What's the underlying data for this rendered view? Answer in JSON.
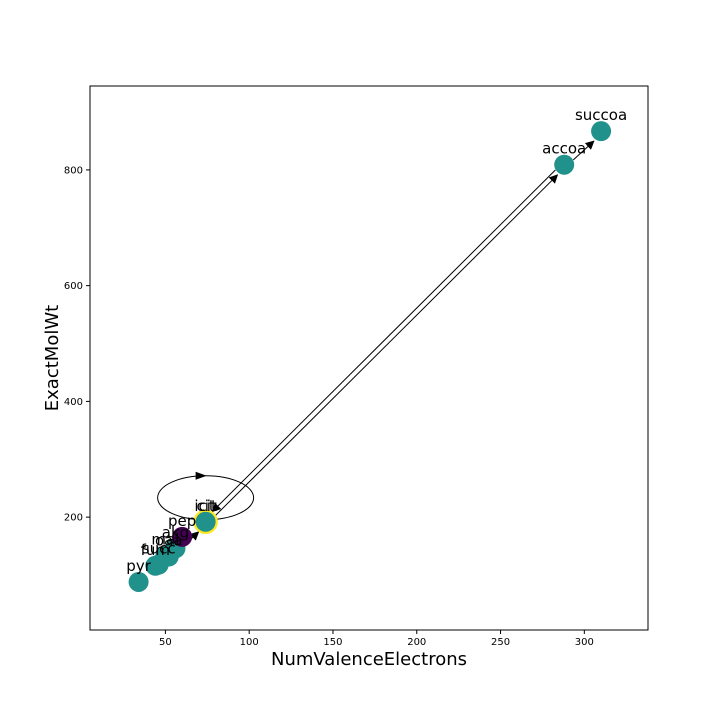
{
  "chart_data": {
    "type": "scatter",
    "title": "",
    "xlabel": "NumValenceElectrons",
    "ylabel": "ExactMolWt",
    "xlim": [
      5,
      338
    ],
    "ylim": [
      5,
      945
    ],
    "xticks": [
      50,
      100,
      150,
      200,
      250,
      300
    ],
    "yticks": [
      200,
      400,
      600,
      800
    ],
    "grid": false,
    "colors": {
      "node": "#21918c",
      "node_dark": "#440154",
      "highlight_ring": "#fde725",
      "edge": "#000000"
    },
    "points": [
      {
        "label": "pyr",
        "x": 34,
        "y": 88,
        "color": "#21918c"
      },
      {
        "label": "fum",
        "x": 44,
        "y": 116,
        "color": "#21918c"
      },
      {
        "label": "succ",
        "x": 46,
        "y": 118,
        "color": "#21918c"
      },
      {
        "label": "mal",
        "x": 50,
        "y": 134,
        "color": "#21918c"
      },
      {
        "label": "oaa",
        "x": 52,
        "y": 132,
        "color": "#21918c"
      },
      {
        "label": "akg",
        "x": 56,
        "y": 146,
        "color": "#21918c"
      },
      {
        "label": "pep",
        "x": 60,
        "y": 166,
        "color": "#440154"
      },
      {
        "label": "icit",
        "x": 74,
        "y": 192,
        "color": "#21918c",
        "highlight": true
      },
      {
        "label": "cit",
        "x": 74,
        "y": 192,
        "color": "#21918c"
      },
      {
        "label": "accoa",
        "x": 288,
        "y": 809,
        "color": "#21918c"
      },
      {
        "label": "succoa",
        "x": 310,
        "y": 867,
        "color": "#21918c"
      }
    ],
    "edges": [
      {
        "from": "oaa",
        "to": "cit"
      },
      {
        "from": "cit",
        "to": "accoa"
      },
      {
        "from": "accoa",
        "to": "cit"
      },
      {
        "from": "accoa",
        "to": "succoa"
      },
      {
        "from": "cit",
        "to": "cit",
        "self_loop": true
      }
    ]
  }
}
